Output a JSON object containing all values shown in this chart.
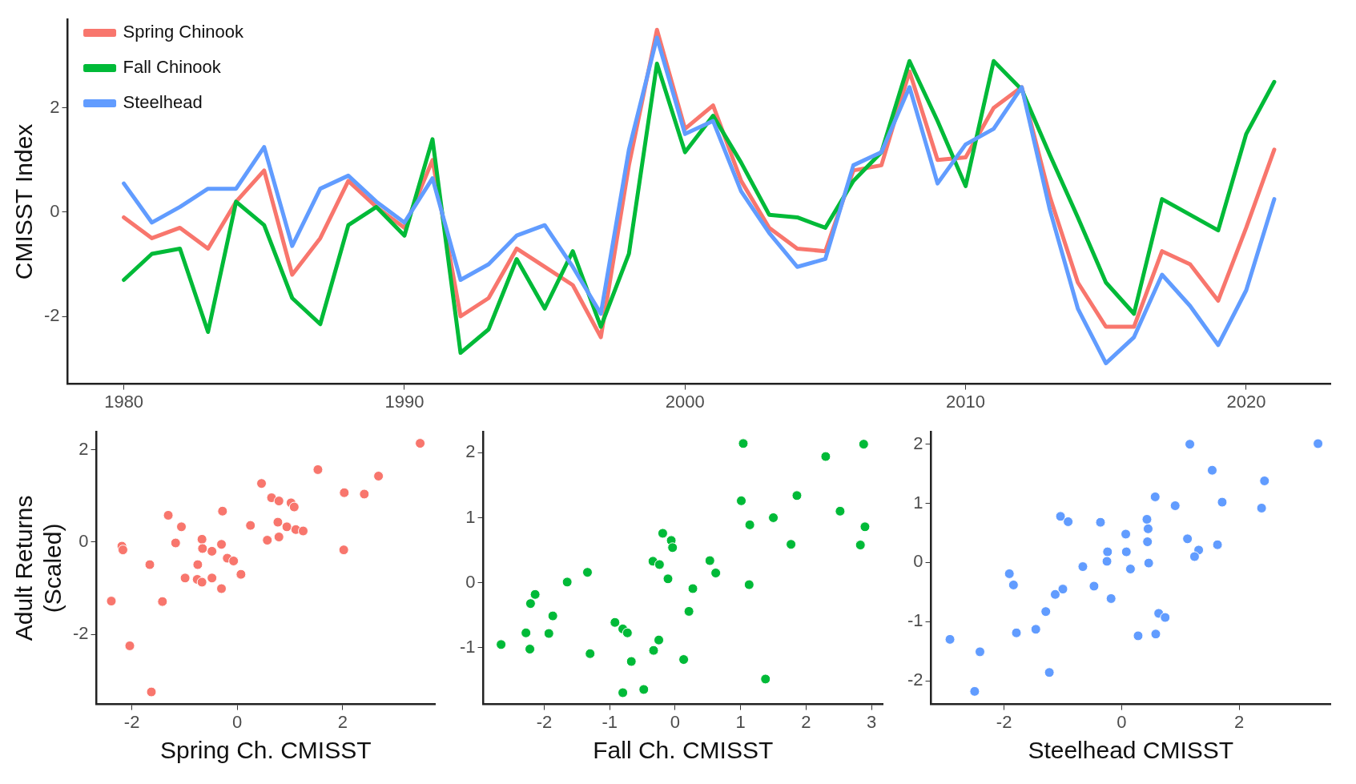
{
  "chart_data": [
    {
      "type": "line",
      "ylabel": "CMISST Index",
      "x": [
        1980,
        1981,
        1982,
        1983,
        1984,
        1985,
        1986,
        1987,
        1988,
        1989,
        1990,
        1991,
        1992,
        1993,
        1994,
        1995,
        1996,
        1997,
        1998,
        1999,
        2000,
        2001,
        2002,
        2003,
        2004,
        2005,
        2006,
        2007,
        2008,
        2009,
        2010,
        2011,
        2012,
        2013,
        2014,
        2015,
        2016,
        2017,
        2018,
        2019,
        2020,
        2021
      ],
      "xlim": [
        1978,
        2023
      ],
      "xticks": [
        1980,
        1990,
        2000,
        2010,
        2020
      ],
      "ylim": [
        -3.3,
        3.7
      ],
      "yticks": [
        -2,
        0,
        2
      ],
      "grid": false,
      "legend": "top left",
      "line_style": "solid",
      "series": [
        {
          "name": "Spring Chinook",
          "color": "#f8766d",
          "values": [
            -0.1,
            -0.5,
            -0.3,
            -0.7,
            0.2,
            0.8,
            -1.2,
            -0.5,
            0.6,
            0.1,
            -0.3,
            1.0,
            -2.0,
            -1.65,
            -0.7,
            -1.05,
            -1.4,
            -2.4,
            0.9,
            3.5,
            1.6,
            2.05,
            0.6,
            -0.3,
            -0.7,
            -0.75,
            0.8,
            0.9,
            2.7,
            1.0,
            1.05,
            2.0,
            2.4,
            0.3,
            -1.35,
            -2.2,
            -2.2,
            -0.75,
            -1.0,
            -1.7,
            -0.3,
            1.2
          ]
        },
        {
          "name": "Fall Chinook",
          "color": "#00ba38",
          "values": [
            -1.3,
            -0.8,
            -0.7,
            -2.3,
            0.2,
            -0.25,
            -1.65,
            -2.15,
            -0.25,
            0.1,
            -0.45,
            1.4,
            -2.7,
            -2.25,
            -0.9,
            -1.85,
            -0.75,
            -2.2,
            -0.8,
            2.85,
            1.15,
            1.85,
            0.95,
            -0.05,
            -0.1,
            -0.3,
            0.6,
            1.15,
            2.9,
            1.75,
            0.5,
            2.9,
            2.35,
            1.1,
            -0.1,
            -1.35,
            -1.95,
            0.25,
            -0.05,
            -0.35,
            1.5,
            2.5
          ]
        },
        {
          "name": "Steelhead",
          "color": "#619cff",
          "values": [
            0.55,
            -0.2,
            0.1,
            0.45,
            0.45,
            1.25,
            -0.65,
            0.45,
            0.7,
            0.2,
            -0.2,
            0.65,
            -1.3,
            -1.0,
            -0.45,
            -0.25,
            -1.05,
            -1.95,
            1.2,
            3.35,
            1.5,
            1.75,
            0.4,
            -0.4,
            -1.05,
            -0.9,
            0.9,
            1.15,
            2.4,
            0.55,
            1.3,
            1.6,
            2.4,
            0.05,
            -1.85,
            -2.9,
            -2.4,
            -1.2,
            -1.8,
            -2.55,
            -1.5,
            0.25
          ]
        }
      ]
    },
    {
      "type": "scatter",
      "xlabel": "Spring Ch. CMISST",
      "ylabel": "Adult Returns\n(Scaled)",
      "xlim": [
        -2.67,
        3.75
      ],
      "xticks": [
        -2,
        0,
        2
      ],
      "ylim": [
        -3.52,
        2.39
      ],
      "yticks": [
        -2,
        0,
        2
      ],
      "grid": false,
      "marker": "circle",
      "color": "#f8766d",
      "x": [
        3.47,
        1.53,
        2.68,
        2.03,
        2.41,
        0.46,
        0.65,
        0.79,
        1.02,
        1.08,
        -0.28,
        -1.31,
        -1.06,
        0.25,
        0.77,
        0.94,
        1.11,
        1.25,
        0.57,
        0.79,
        -1.17,
        -0.67,
        -0.66,
        -0.48,
        -0.3,
        -2.19,
        -2.17,
        2.02,
        -0.19,
        -0.07,
        -1.66,
        -0.75,
        0.07,
        -0.99,
        -0.76,
        -0.67,
        -0.48,
        -0.3,
        -2.39,
        -1.42,
        -2.04,
        -1.63
      ],
      "values": [
        2.14,
        1.57,
        1.43,
        1.07,
        1.04,
        1.27,
        0.96,
        0.89,
        0.85,
        0.76,
        0.67,
        0.58,
        0.33,
        0.36,
        0.43,
        0.33,
        0.27,
        0.24,
        0.04,
        0.11,
        -0.02,
        0.06,
        -0.14,
        -0.2,
        -0.05,
        -0.09,
        -0.17,
        -0.17,
        -0.35,
        -0.41,
        -0.49,
        -0.49,
        -0.7,
        -0.78,
        -0.81,
        -0.87,
        -0.78,
        -1.01,
        -1.28,
        -1.29,
        -2.25,
        -3.25
      ]
    },
    {
      "type": "scatter",
      "xlabel": "Fall Ch. CMISST",
      "xlim": [
        -2.93,
        3.17
      ],
      "xticks": [
        -2,
        -1,
        0,
        1,
        2,
        3
      ],
      "ylim": [
        -1.87,
        2.32
      ],
      "yticks": [
        -1,
        0,
        1,
        2
      ],
      "grid": false,
      "marker": "circle",
      "color": "#00ba38",
      "x": [
        1.04,
        2.88,
        2.3,
        1.86,
        1.01,
        2.52,
        1.5,
        1.14,
        2.9,
        1.77,
        2.83,
        -0.19,
        -0.06,
        -0.04,
        -0.34,
        -0.24,
        0.53,
        0.62,
        -0.11,
        1.13,
        0.27,
        -1.34,
        -1.65,
        -2.14,
        -2.21,
        -1.87,
        0.21,
        -2.28,
        -1.93,
        -0.92,
        -0.8,
        -0.73,
        -0.25,
        -0.33,
        -2.66,
        -2.22,
        -1.3,
        -0.67,
        0.13,
        1.38,
        -0.48,
        -0.8
      ],
      "values": [
        2.14,
        2.13,
        1.94,
        1.34,
        1.26,
        1.1,
        1.0,
        0.89,
        0.86,
        0.59,
        0.58,
        0.76,
        0.65,
        0.54,
        0.33,
        0.28,
        0.34,
        0.15,
        0.06,
        -0.03,
        -0.09,
        0.16,
        0.01,
        -0.18,
        -0.32,
        -0.51,
        -0.44,
        -0.77,
        -0.78,
        -0.61,
        -0.71,
        -0.77,
        -0.88,
        -1.04,
        -0.95,
        -1.02,
        -1.09,
        -1.21,
        -1.18,
        -1.48,
        -1.64,
        -1.69
      ]
    },
    {
      "type": "scatter",
      "xlabel": "Steelhead CMISST",
      "xlim": [
        -3.24,
        3.55
      ],
      "xticks": [
        -2,
        0,
        2
      ],
      "ylim": [
        -2.4,
        2.21
      ],
      "yticks": [
        -2,
        -1,
        0,
        1,
        2
      ],
      "grid": false,
      "marker": "circle",
      "color": "#619cff",
      "x": [
        1.16,
        3.34,
        1.54,
        2.43,
        0.57,
        0.91,
        1.71,
        2.38,
        -1.04,
        -0.91,
        -0.36,
        0.43,
        0.45,
        0.07,
        0.44,
        1.12,
        1.63,
        1.31,
        1.24,
        -0.24,
        0.08,
        -0.25,
        0.46,
        -0.66,
        0.15,
        -1.91,
        -1.84,
        -1.0,
        -1.13,
        -0.47,
        -0.18,
        -1.29,
        0.63,
        0.74,
        -1.79,
        -1.46,
        0.28,
        0.58,
        -2.92,
        -2.41,
        -1.23,
        -2.5
      ],
      "values": [
        2.0,
        2.01,
        1.56,
        1.38,
        1.11,
        0.96,
        1.02,
        0.92,
        0.78,
        0.69,
        0.68,
        0.73,
        0.57,
        0.48,
        0.35,
        0.4,
        0.3,
        0.21,
        0.1,
        0.18,
        0.18,
        0.02,
        -0.01,
        -0.07,
        -0.11,
        -0.19,
        -0.38,
        -0.45,
        -0.54,
        -0.4,
        -0.61,
        -0.83,
        -0.86,
        -0.93,
        -1.19,
        -1.13,
        -1.24,
        -1.21,
        -1.3,
        -1.51,
        -1.86,
        -2.18
      ]
    }
  ]
}
